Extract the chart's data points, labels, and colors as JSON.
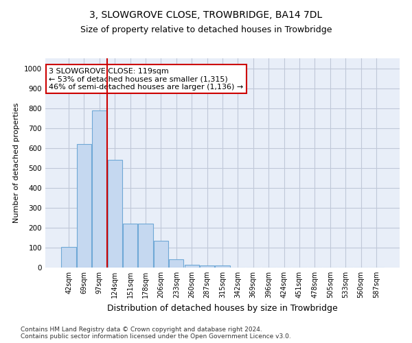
{
  "title": "3, SLOWGROVE CLOSE, TROWBRIDGE, BA14 7DL",
  "subtitle": "Size of property relative to detached houses in Trowbridge",
  "xlabel": "Distribution of detached houses by size in Trowbridge",
  "ylabel": "Number of detached properties",
  "categories": [
    "42sqm",
    "69sqm",
    "97sqm",
    "124sqm",
    "151sqm",
    "178sqm",
    "206sqm",
    "233sqm",
    "260sqm",
    "287sqm",
    "315sqm",
    "342sqm",
    "369sqm",
    "396sqm",
    "424sqm",
    "451sqm",
    "478sqm",
    "505sqm",
    "533sqm",
    "560sqm",
    "587sqm"
  ],
  "values": [
    105,
    620,
    790,
    540,
    220,
    220,
    135,
    40,
    15,
    10,
    10,
    0,
    0,
    0,
    0,
    0,
    0,
    0,
    0,
    0,
    0
  ],
  "bar_color": "#c5d8f0",
  "bar_edge_color": "#6fa8d6",
  "vline_color": "#cc0000",
  "vline_x": 2.5,
  "annotation_text": "3 SLOWGROVE CLOSE: 119sqm\n← 53% of detached houses are smaller (1,315)\n46% of semi-detached houses are larger (1,136) →",
  "annotation_box_color": "#ffffff",
  "annotation_box_edge_color": "#cc0000",
  "ylim": [
    0,
    1050
  ],
  "yticks": [
    0,
    100,
    200,
    300,
    400,
    500,
    600,
    700,
    800,
    900,
    1000
  ],
  "grid_color": "#c0c8d8",
  "bg_color": "#e8eef8",
  "footnote": "Contains HM Land Registry data © Crown copyright and database right 2024.\nContains public sector information licensed under the Open Government Licence v3.0.",
  "title_fontsize": 10,
  "subtitle_fontsize": 9,
  "xlabel_fontsize": 9,
  "ylabel_fontsize": 8,
  "annotation_fontsize": 8,
  "tick_fontsize": 7,
  "ytick_fontsize": 7.5
}
